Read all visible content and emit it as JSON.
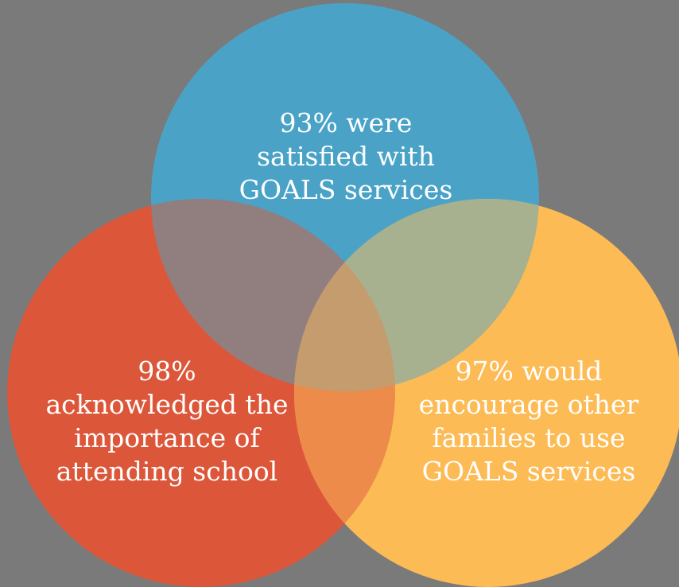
{
  "background_color": "#7a7a7a",
  "circles": [
    {
      "id": "satisfied",
      "color": "#4aa3c7",
      "lines": [
        "93% were",
        "satisfied with",
        "GOALS services"
      ]
    },
    {
      "id": "attendance",
      "color": "#dc573a",
      "lines": [
        "98%",
        "acknowledged the",
        "importance of",
        "attending school"
      ]
    },
    {
      "id": "encourage",
      "color": "#fdbb55",
      "lines": [
        "97% would",
        "encourage other",
        "families to use",
        "GOALS services"
      ]
    }
  ],
  "overlap_colors": {
    "satisfied_attendance": "#917f80",
    "satisfied_encourage": "#a7b18f",
    "attendance_encourage": "#ed8b4b",
    "all_three": "#c49c6d"
  }
}
